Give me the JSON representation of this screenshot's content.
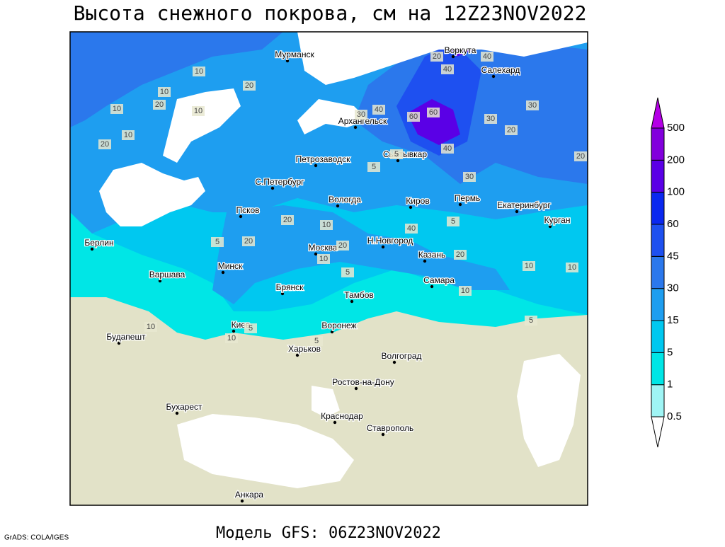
{
  "header": {
    "title": "Высота снежного покрова, см на 12Z23NOV2022"
  },
  "footer": {
    "model": "Модель GFS: 06Z23NOV2022",
    "credit": "GrADS: COLA/IGES"
  },
  "cities": [
    "Мурманск",
    "Воркута",
    "Салехард",
    "Архангельск",
    "Сыктывкар",
    "Петрозаводск",
    "С.Петербург",
    "Вологда",
    "Киров",
    "Пермь",
    "Екатеринбург",
    "Курган",
    "Псков",
    "Н.Новгород",
    "Казань",
    "Берлин",
    "Москва",
    "Минск",
    "Варшава",
    "Брянск",
    "Тамбов",
    "Самара",
    "Киев",
    "Воронеж",
    "Будапешт",
    "Харьков",
    "Волгоград",
    "Ростов-на-Дону",
    "Бухарест",
    "Краснодар",
    "Ставрополь",
    "Анкара"
  ],
  "contour_labels": [
    10,
    20,
    10,
    10,
    20,
    10,
    20,
    10,
    20,
    40,
    40,
    30,
    40,
    60,
    60,
    30,
    30,
    20,
    40,
    30,
    20,
    5,
    5,
    20,
    10,
    20,
    40,
    5,
    20,
    20,
    10,
    10,
    10,
    5,
    5,
    10,
    10,
    5,
    5,
    10,
    5
  ],
  "legend": {
    "levels": [
      0.5,
      1,
      5,
      15,
      30,
      45,
      60,
      100,
      200,
      500
    ],
    "colors": [
      "#ffffff",
      "#9ff5f5",
      "#00e6e6",
      "#00c8f0",
      "#1e9ef0",
      "#2b78ec",
      "#1e50f0",
      "#0a28f0",
      "#5a00e6",
      "#8200dc",
      "#b400e6"
    ]
  }
}
